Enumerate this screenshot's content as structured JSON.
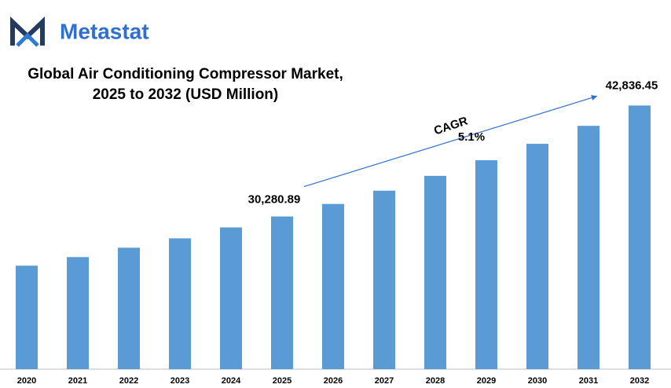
{
  "brand": "Metastat",
  "chart_data": {
    "type": "bar",
    "title": "Global Air Conditioning Compressor Market, 2025 to 2032 (USD Million)",
    "categories": [
      "2020",
      "2021",
      "2022",
      "2023",
      "2024",
      "2025",
      "2026",
      "2027",
      "2028",
      "2029",
      "2030",
      "2031",
      "2032"
    ],
    "values": [
      24710,
      25683,
      26744,
      27805,
      29043,
      30280.89,
      31696,
      33199,
      34879,
      36647,
      38504,
      40538,
      42836.45
    ],
    "value_labels": [
      null,
      null,
      null,
      null,
      null,
      "30,280.89",
      null,
      null,
      null,
      null,
      null,
      null,
      "42,836.45"
    ],
    "color": "#5b9bd5",
    "ylim": [
      13000,
      45000
    ],
    "annotations": [
      "CAGR",
      "5.1%"
    ]
  }
}
